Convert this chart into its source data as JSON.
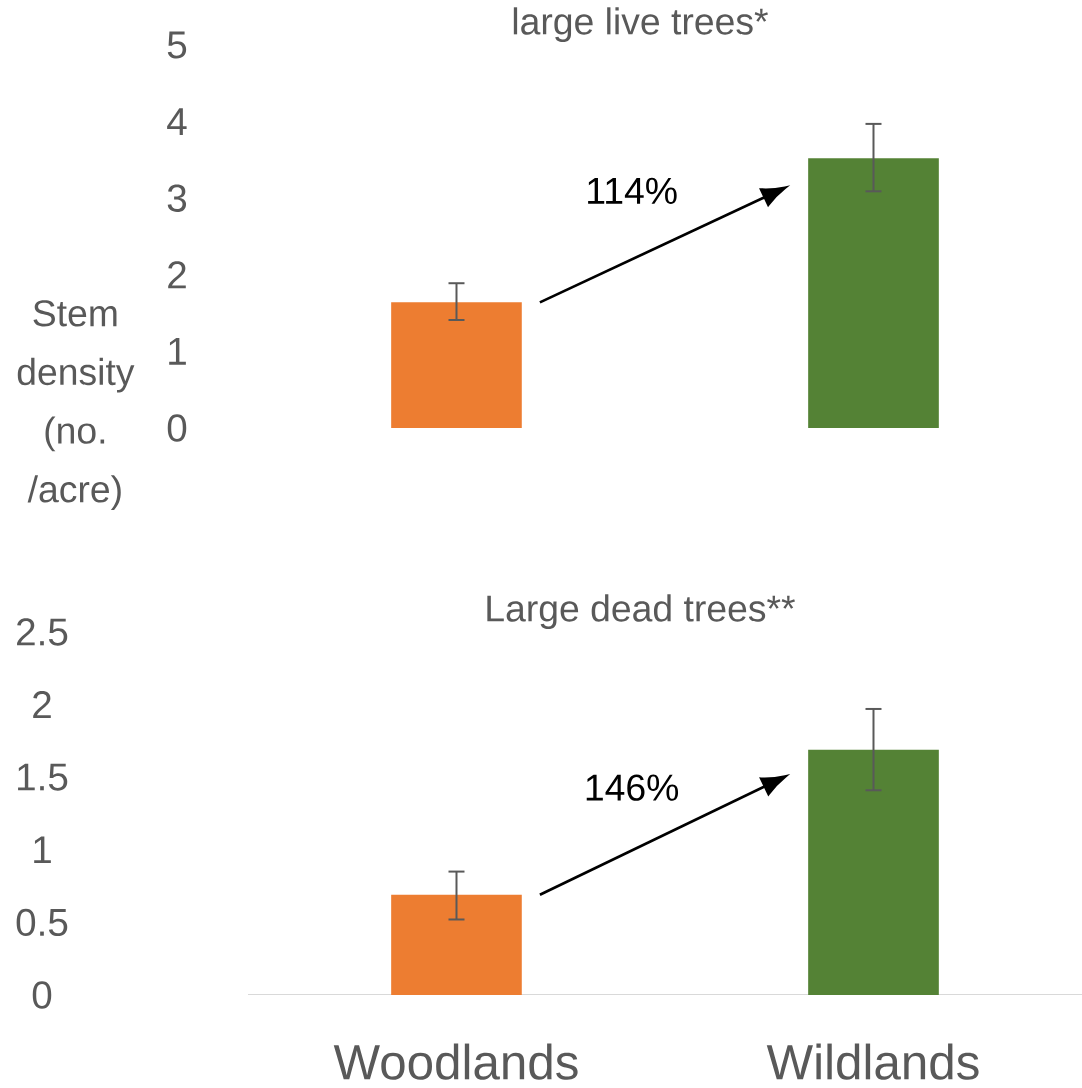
{
  "chart_data": [
    {
      "type": "bar",
      "title": "large live trees*",
      "ylabel": "Stem density (no. /acre)",
      "categories": [
        null,
        null
      ],
      "values": [
        1.64,
        3.52
      ],
      "colors": [
        "#ed7d31",
        "#548235"
      ],
      "errors": [
        [
          1.41,
          1.89
        ],
        [
          3.09,
          3.97
        ]
      ],
      "ylim": [
        0,
        5
      ],
      "yticks": [
        0,
        1,
        2,
        3,
        4,
        5
      ],
      "tick_labels": "y",
      "annotations": [
        "114%"
      ]
    },
    {
      "type": "bar",
      "title": "Large dead trees**",
      "categories": [
        "Woodlands",
        "Wildlands"
      ],
      "values": [
        0.69,
        1.69
      ],
      "colors": [
        "#ed7d31",
        "#548235"
      ],
      "errors": [
        [
          0.52,
          0.85
        ],
        [
          1.41,
          1.97
        ]
      ],
      "ylim": [
        0,
        2.5
      ],
      "yticks": [
        0,
        0.5,
        1,
        1.5,
        2,
        2.5
      ],
      "annotations": [
        "146%"
      ]
    }
  ]
}
